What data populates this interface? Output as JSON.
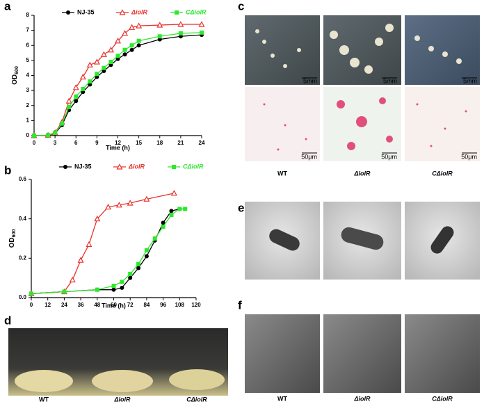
{
  "panel_labels": [
    "a",
    "b",
    "c",
    "d",
    "e",
    "f"
  ],
  "chart_data": [
    {
      "type": "line",
      "x_label": "Time (h)",
      "y_label": "OD",
      "y_label_subscript": "600",
      "xlim": [
        0,
        24
      ],
      "xticks": [
        0,
        3,
        6,
        9,
        12,
        15,
        18,
        21,
        24
      ],
      "ylim": [
        0,
        8
      ],
      "yticks": [
        0,
        1,
        2,
        3,
        4,
        5,
        6,
        7,
        8
      ],
      "series": [
        {
          "name": "NJ-35",
          "color": "#000000",
          "marker": "circle",
          "x": [
            0,
            2,
            3,
            4,
            5,
            6,
            7,
            8,
            9,
            10,
            11,
            12,
            13,
            14,
            15,
            18,
            21,
            24
          ],
          "values": [
            0,
            0.02,
            0.15,
            0.7,
            1.7,
            2.3,
            2.9,
            3.4,
            3.9,
            4.3,
            4.7,
            5.1,
            5.4,
            5.7,
            6.0,
            6.4,
            6.6,
            6.7
          ]
        },
        {
          "name": "ΔiolR",
          "color": "#e8322c",
          "marker": "triangle",
          "x": [
            0,
            2,
            3,
            4,
            5,
            6,
            7,
            8,
            9,
            10,
            11,
            12,
            13,
            14,
            15,
            18,
            21,
            24
          ],
          "values": [
            0,
            0.03,
            0.2,
            0.9,
            2.3,
            3.2,
            3.9,
            4.7,
            4.9,
            5.4,
            5.7,
            6.3,
            6.8,
            7.2,
            7.3,
            7.35,
            7.4,
            7.4
          ]
        },
        {
          "name": "CΔiolR",
          "color": "#2ee82e",
          "marker": "square",
          "x": [
            0,
            2,
            3,
            4,
            5,
            6,
            7,
            8,
            9,
            10,
            11,
            12,
            13,
            14,
            15,
            18,
            21,
            24
          ],
          "values": [
            0,
            0.03,
            0.18,
            0.8,
            1.9,
            2.6,
            3.1,
            3.6,
            4.1,
            4.5,
            4.9,
            5.3,
            5.7,
            6.0,
            6.3,
            6.6,
            6.8,
            6.85
          ]
        }
      ]
    },
    {
      "type": "line",
      "x_label": "Time (h)",
      "y_label": "OD",
      "y_label_subscript": "600",
      "xlim": [
        0,
        120
      ],
      "xticks": [
        0,
        12,
        24,
        36,
        48,
        60,
        72,
        84,
        96,
        108,
        120
      ],
      "ylim": [
        0,
        0.6
      ],
      "yticks": [
        {
          "value": 0,
          "label": "0.0"
        },
        0.2,
        0.4,
        0.6
      ],
      "series": [
        {
          "name": "NJ-35",
          "color": "#000000",
          "marker": "circle",
          "x": [
            0,
            24,
            48,
            60,
            66,
            72,
            78,
            84,
            90,
            96,
            102,
            108,
            112
          ],
          "values": [
            0.02,
            0.03,
            0.04,
            0.04,
            0.05,
            0.1,
            0.15,
            0.21,
            0.29,
            0.38,
            0.44,
            0.45,
            0.45
          ]
        },
        {
          "name": "ΔiolR",
          "color": "#e8322c",
          "marker": "triangle",
          "x": [
            0,
            24,
            30,
            36,
            42,
            48,
            56,
            64,
            72,
            84,
            104
          ],
          "values": [
            0.02,
            0.03,
            0.09,
            0.19,
            0.27,
            0.4,
            0.46,
            0.47,
            0.48,
            0.5,
            0.53
          ]
        },
        {
          "name": "CΔiolR",
          "color": "#2ee82e",
          "marker": "square",
          "x": [
            0,
            24,
            48,
            60,
            66,
            72,
            78,
            84,
            90,
            96,
            102,
            108,
            112
          ],
          "values": [
            0.02,
            0.03,
            0.04,
            0.06,
            0.08,
            0.12,
            0.17,
            0.24,
            0.3,
            0.36,
            0.42,
            0.45,
            0.45
          ]
        }
      ]
    }
  ],
  "panel_c": {
    "scale_bars_top": [
      "5mm",
      "5mm",
      "5mm"
    ],
    "scale_bars_bottom": [
      "50μm",
      "50μm",
      "50μm"
    ],
    "captions": [
      "WT",
      "ΔiolR",
      "CΔiolR"
    ]
  },
  "panel_d": {
    "captions": [
      "WT",
      "ΔiolR",
      "CΔiolR"
    ]
  },
  "panel_f": {
    "captions": [
      "WT",
      "ΔiolR",
      "CΔiolR"
    ]
  }
}
